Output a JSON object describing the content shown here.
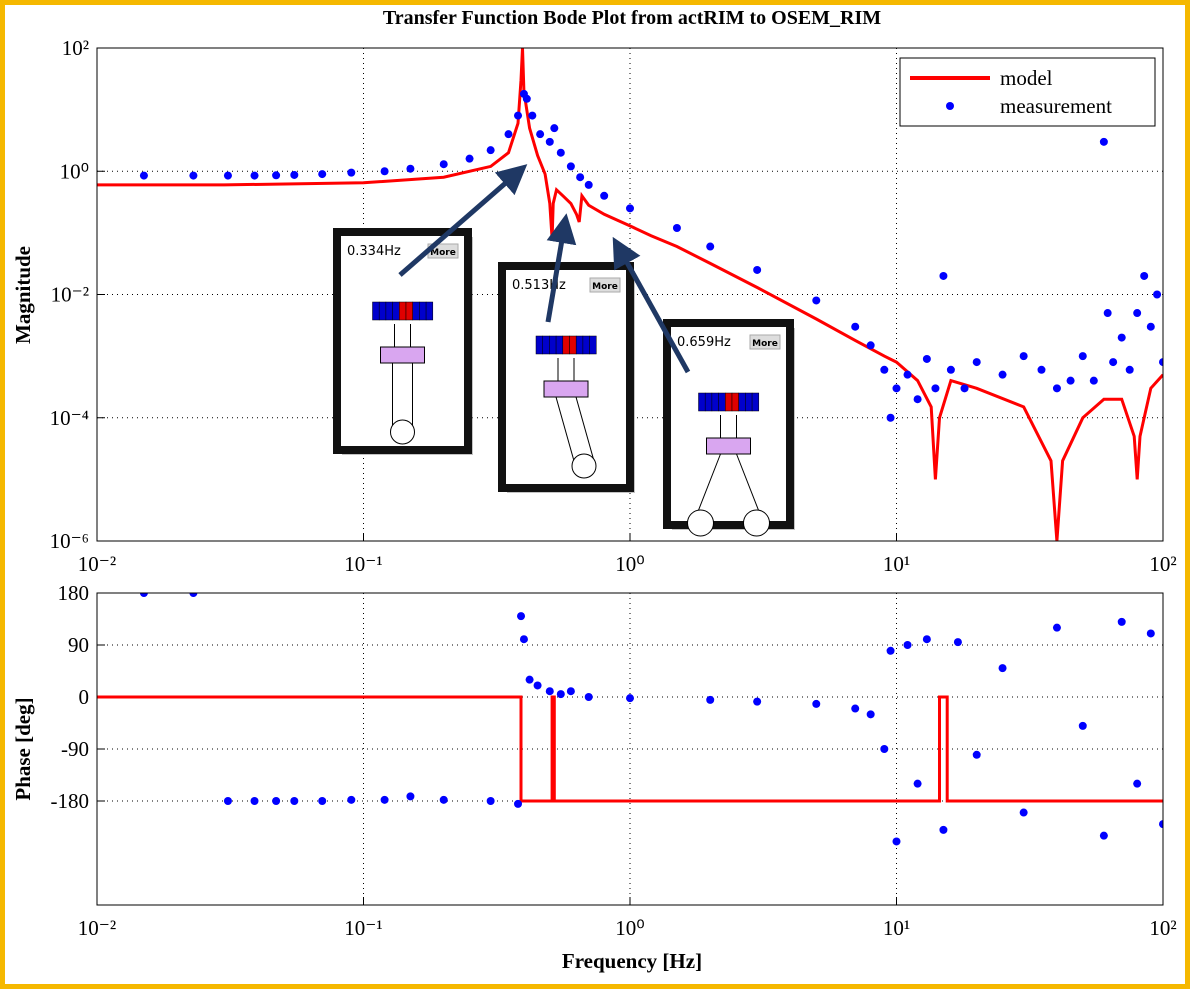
{
  "chart_data": [
    {
      "type": "line",
      "title": "Transfer Function Bode Plot from actRIM to OSEM_RIM",
      "y_label": "Magnitude",
      "xscale": "log",
      "yscale": "log",
      "grid": true,
      "legend": "upper right",
      "xlim": [
        0.01,
        100
      ],
      "xticks": [
        {
          "value": 0.01,
          "label": "10⁻²"
        },
        {
          "value": 0.1,
          "label": "10⁻¹"
        },
        {
          "value": 1,
          "label": "10⁰"
        },
        {
          "value": 10,
          "label": "10¹"
        },
        {
          "value": 100,
          "label": "10²"
        }
      ],
      "ylim": [
        1e-06,
        100
      ],
      "yticks": [
        {
          "value": 100,
          "label": "10²"
        },
        {
          "value": 1,
          "label": "10⁰"
        },
        {
          "value": 0.01,
          "label": "10⁻²"
        },
        {
          "value": 0.0001,
          "label": "10⁻⁴"
        },
        {
          "value": 1e-06,
          "label": "10⁻⁶"
        }
      ],
      "series": [
        {
          "name": "model",
          "color": "#ff0000",
          "mode": "line",
          "x": [
            0.01,
            0.03,
            0.1,
            0.2,
            0.3,
            0.35,
            0.38,
            0.39,
            0.395,
            0.4,
            0.42,
            0.45,
            0.48,
            0.5,
            0.51,
            0.515,
            0.53,
            0.56,
            0.6,
            0.63,
            0.645,
            0.66,
            0.7,
            0.8,
            1,
            1.2,
            1.5,
            2,
            3,
            5,
            7,
            9,
            10,
            12,
            13.5,
            14,
            14.5,
            16,
            20,
            30,
            38,
            40,
            42,
            50,
            60,
            70,
            78,
            80,
            82,
            90,
            100
          ],
          "values": [
            0.6,
            0.6,
            0.65,
            0.8,
            1.2,
            2,
            6,
            30,
            100,
            20,
            5,
            1.8,
            0.9,
            0.3,
            0.08,
            0.3,
            0.5,
            0.4,
            0.3,
            0.2,
            0.15,
            0.4,
            0.28,
            0.2,
            0.13,
            0.09,
            0.06,
            0.032,
            0.013,
            0.004,
            0.0018,
            0.001,
            0.0008,
            0.0004,
            0.00015,
            1e-05,
            0.0001,
            0.0004,
            0.0003,
            0.00015,
            2e-05,
            1e-06,
            2e-05,
            0.0001,
            0.0002,
            0.0002,
            5e-05,
            1e-05,
            5e-05,
            0.0003,
            0.0005
          ]
        },
        {
          "name": "measurement",
          "color": "#0000ff",
          "mode": "markers",
          "x": [
            0.015,
            0.023,
            0.031,
            0.039,
            0.047,
            0.055,
            0.07,
            0.09,
            0.12,
            0.15,
            0.2,
            0.25,
            0.3,
            0.35,
            0.38,
            0.4,
            0.41,
            0.43,
            0.46,
            0.5,
            0.52,
            0.55,
            0.6,
            0.65,
            0.7,
            0.8,
            1,
            1.5,
            2,
            3,
            5,
            7,
            8,
            9,
            9.5,
            10,
            11,
            12,
            13,
            14,
            15,
            16,
            18,
            20,
            25,
            30,
            35,
            40,
            45,
            50,
            55,
            60,
            62,
            65,
            70,
            75,
            80,
            85,
            90,
            95,
            100
          ],
          "values": [
            0.85,
            0.85,
            0.85,
            0.85,
            0.86,
            0.87,
            0.9,
            0.95,
            1.0,
            1.1,
            1.3,
            1.6,
            2.2,
            4,
            8,
            18,
            15,
            8,
            4,
            3,
            5,
            2,
            1.2,
            0.8,
            0.6,
            0.4,
            0.25,
            0.12,
            0.06,
            0.025,
            0.008,
            0.003,
            0.0015,
            0.0006,
            0.0001,
            0.0003,
            0.0005,
            0.0002,
            0.0009,
            0.0003,
            0.02,
            0.0006,
            0.0003,
            0.0008,
            0.0005,
            0.001,
            0.0006,
            0.0003,
            0.0004,
            0.001,
            0.0004,
            3,
            0.005,
            0.0008,
            0.002,
            0.0006,
            0.005,
            0.02,
            0.003,
            0.01,
            0.0008
          ]
        }
      ],
      "annotations": [
        {
          "text": "0.334Hz",
          "button": "More"
        },
        {
          "text": "0.513Hz",
          "button": "More"
        },
        {
          "text": "0.659Hz",
          "button": "More"
        }
      ]
    },
    {
      "type": "line",
      "x_label": "Frequency [Hz]",
      "y_label": "Phase [deg]",
      "xscale": "log",
      "yscale": "linear",
      "grid": true,
      "xlim": [
        0.01,
        100
      ],
      "xticks": [
        {
          "value": 0.01,
          "label": "10⁻²"
        },
        {
          "value": 0.1,
          "label": "10⁻¹"
        },
        {
          "value": 1,
          "label": "10⁰"
        },
        {
          "value": 10,
          "label": "10¹"
        },
        {
          "value": 100,
          "label": "10²"
        }
      ],
      "ylim": [
        -360,
        180
      ],
      "yticks": [
        180,
        90,
        0,
        -90,
        -180
      ],
      "series": [
        {
          "name": "model",
          "color": "#ff0000",
          "mode": "line",
          "x": [
            0.01,
            0.39,
            0.39,
            0.51,
            0.51,
            0.52,
            0.52,
            14.5,
            14.5,
            15.5,
            15.5,
            100
          ],
          "values": [
            0,
            0,
            -180,
            -180,
            0,
            0,
            -180,
            -180,
            0,
            0,
            -180,
            -180
          ]
        },
        {
          "name": "measurement",
          "color": "#0000ff",
          "mode": "markers",
          "x": [
            0.015,
            0.023,
            0.031,
            0.039,
            0.047,
            0.055,
            0.07,
            0.09,
            0.12,
            0.15,
            0.2,
            0.3,
            0.38,
            0.39,
            0.4,
            0.42,
            0.45,
            0.5,
            0.55,
            0.6,
            0.7,
            1,
            2,
            3,
            5,
            7,
            8,
            9,
            9.5,
            10,
            11,
            12,
            13,
            15,
            17,
            20,
            25,
            30,
            40,
            50,
            60,
            70,
            80,
            90,
            100
          ],
          "values": [
            180,
            180,
            -180,
            -180,
            -180,
            -180,
            -180,
            -178,
            -178,
            -172,
            -178,
            -180,
            -185,
            140,
            100,
            30,
            20,
            10,
            5,
            10,
            0,
            -2,
            -5,
            -8,
            -12,
            -20,
            -30,
            -90,
            80,
            -250,
            90,
            -150,
            100,
            -230,
            95,
            -100,
            50,
            -200,
            120,
            -50,
            -240,
            130,
            -150,
            110,
            -220
          ]
        }
      ]
    }
  ]
}
